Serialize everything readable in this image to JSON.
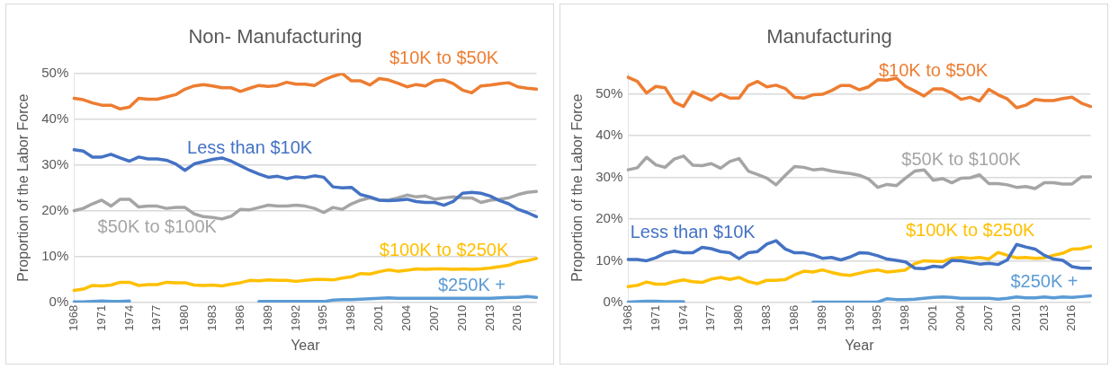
{
  "chart_data": [
    {
      "type": "line",
      "title": "Non- Manufacturing",
      "xlabel": "Year",
      "ylabel": "Proportion of the Labor Force",
      "marker": "none",
      "grid": "y",
      "categories": [
        "1968",
        null,
        null,
        "1971",
        null,
        null,
        "1974",
        null,
        null,
        "1977",
        null,
        null,
        "1980",
        null,
        null,
        "1983",
        null,
        null,
        "1986",
        null,
        null,
        "1989",
        null,
        null,
        "1992",
        null,
        null,
        "1995",
        null,
        null,
        "1998",
        null,
        null,
        "2001",
        null,
        null,
        "2004",
        null,
        null,
        "2007",
        null,
        null,
        "2010",
        null,
        null,
        "2013",
        null,
        null,
        "2016",
        null,
        null
      ],
      "ylim": [
        0,
        50
      ],
      "yticks": [
        {
          "value": 0,
          "label": "0%"
        },
        {
          "value": 10,
          "label": "10%"
        },
        {
          "value": 20,
          "label": "20%"
        },
        {
          "value": 30,
          "label": "30%"
        },
        {
          "value": 40,
          "label": "40%"
        },
        {
          "value": 50,
          "label": "50%"
        }
      ],
      "series": [
        {
          "name": "$10K to $50K",
          "color": "#ed7d31",
          "values": [
            44.5,
            44.2,
            43.5,
            43,
            43,
            42.2,
            42.6,
            44.5,
            44.3,
            44.3,
            44.8,
            45.3,
            46.5,
            47.2,
            47.5,
            47.2,
            46.8,
            46.8,
            46,
            46.7,
            47.3,
            47.1,
            47.3,
            48,
            47.6,
            47.6,
            47.3,
            48.5,
            49.3,
            49.9,
            48.3,
            48.3,
            47.4,
            48.8,
            48.5,
            47.8,
            47.0,
            47.5,
            47.2,
            48.3,
            48.5,
            47.7,
            46.3,
            45.7,
            47.2,
            47.4,
            47.7,
            47.9,
            47.0,
            46.7,
            46.5
          ]
        },
        {
          "name": "Less than $10K",
          "color": "#4472c4",
          "values": [
            33.3,
            33,
            31.7,
            31.7,
            32.3,
            31.5,
            30.8,
            31.7,
            31.3,
            31.3,
            31,
            30.2,
            28.8,
            30.2,
            30.7,
            31.2,
            31.5,
            30.8,
            29.8,
            28.8,
            28,
            27.3,
            27.5,
            27,
            27.4,
            27.2,
            27.6,
            27.3,
            25.2,
            25,
            25.1,
            23.5,
            23,
            22.3,
            22.2,
            22.3,
            22.5,
            22,
            21.8,
            21.8,
            21.2,
            22,
            23.8,
            24,
            23.8,
            23.2,
            22.2,
            21.5,
            20.3,
            19.6,
            18.7
          ]
        },
        {
          "name": "$50K to $100K",
          "color": "#a5a5a5",
          "values": [
            20,
            20.5,
            21.5,
            22.3,
            21,
            22.5,
            22.5,
            20.8,
            21,
            21,
            20.5,
            20.7,
            20.7,
            19.3,
            18.7,
            18.5,
            18.2,
            18.8,
            20.3,
            20.2,
            20.7,
            21.2,
            21,
            21,
            21.2,
            21,
            20.5,
            19.6,
            20.7,
            20.3,
            21.5,
            22.3,
            22.8,
            22.3,
            22.3,
            22.8,
            23.4,
            23,
            23.2,
            22.5,
            22.8,
            23,
            22.8,
            22.8,
            21.8,
            22.3,
            22.5,
            22.8,
            23.5,
            24,
            24.2
          ]
        },
        {
          "name": "$100K to $250K",
          "color": "#ffc000",
          "values": [
            2.6,
            2.9,
            3.7,
            3.6,
            3.8,
            4.4,
            4.4,
            3.7,
            3.9,
            3.9,
            4.4,
            4.3,
            4.3,
            3.8,
            3.7,
            3.8,
            3.6,
            4,
            4.3,
            4.8,
            4.7,
            4.9,
            4.8,
            4.8,
            4.6,
            4.8,
            5,
            5,
            4.9,
            5.3,
            5.6,
            6.3,
            6.2,
            6.7,
            7.1,
            6.8,
            7,
            7.3,
            7.2,
            7.3,
            7.3,
            7.2,
            7.3,
            7.2,
            7.3,
            7.5,
            7.8,
            8.1,
            8.8,
            9.1,
            9.6
          ]
        },
        {
          "name": "$250K +",
          "color": "#5b9bd5",
          "values": [
            0.1,
            0.1,
            0.2,
            0.3,
            0.2,
            0.2,
            0.3,
            null,
            null,
            null,
            null,
            null,
            null,
            null,
            null,
            null,
            null,
            null,
            null,
            null,
            0.2,
            0.2,
            0.2,
            0.2,
            0.2,
            0.2,
            0.2,
            0.2,
            0.5,
            0.6,
            0.6,
            0.7,
            0.8,
            0.9,
            1.0,
            0.9,
            0.9,
            0.9,
            0.9,
            0.9,
            0.9,
            0.9,
            0.9,
            0.9,
            0.9,
            0.9,
            1.0,
            1.1,
            1.1,
            1.3,
            1.1
          ]
        }
      ]
    },
    {
      "type": "line",
      "title": "Manufacturing",
      "xlabel": "Year",
      "ylabel": "Proportion of the Labor Force",
      "marker": "none",
      "grid": "y",
      "categories": [
        "1968",
        null,
        null,
        "1971",
        null,
        null,
        "1974",
        null,
        null,
        "1977",
        null,
        null,
        "1980",
        null,
        null,
        "1983",
        null,
        null,
        "1986",
        null,
        null,
        "1989",
        null,
        null,
        "1992",
        null,
        null,
        "1995",
        null,
        null,
        "1998",
        null,
        null,
        "2001",
        null,
        null,
        "2004",
        null,
        null,
        "2007",
        null,
        null,
        "2010",
        null,
        null,
        "2013",
        null,
        null,
        "2016",
        null,
        null
      ],
      "ylim": [
        0,
        55
      ],
      "yticks": [
        {
          "value": 0,
          "label": "0%"
        },
        {
          "value": 10,
          "label": "10%"
        },
        {
          "value": 20,
          "label": "20%"
        },
        {
          "value": 30,
          "label": "30%"
        },
        {
          "value": 40,
          "label": "40%"
        },
        {
          "value": 50,
          "label": "50%"
        }
      ],
      "series": [
        {
          "name": "$10K to $50K",
          "color": "#ed7d31",
          "values": [
            54,
            53,
            50.2,
            51.8,
            51.5,
            48,
            47,
            50.5,
            49.5,
            48.5,
            50,
            49,
            49,
            52,
            53,
            51.7,
            52.1,
            51.3,
            49.2,
            49,
            49.8,
            49.9,
            50.8,
            52,
            52,
            51,
            51.7,
            53.4,
            53.3,
            53.8,
            51.8,
            50.7,
            49.5,
            51.2,
            51.2,
            50.2,
            48.7,
            49.2,
            48.3,
            51.1,
            49.8,
            48.8,
            46.7,
            47.3,
            48.7,
            48.4,
            48.4,
            48.9,
            49.2,
            47.8,
            47
          ]
        },
        {
          "name": "$50K to $100K",
          "color": "#a5a5a5",
          "values": [
            31.8,
            32.3,
            34.8,
            33,
            32.4,
            34.4,
            35.1,
            32.9,
            32.8,
            33.3,
            32.2,
            33.8,
            34.5,
            31.5,
            30.7,
            29.8,
            28.2,
            30.5,
            32.6,
            32.4,
            31.8,
            32,
            31.5,
            31.2,
            30.9,
            30.5,
            29.6,
            27.6,
            28.3,
            28,
            29.8,
            31.5,
            31.8,
            29.3,
            29.7,
            28.7,
            29.8,
            29.9,
            30.6,
            28.5,
            28.5,
            28.2,
            27.6,
            27.8,
            27.3,
            28.7,
            28.7,
            28.4,
            28.4,
            30.1,
            30.1
          ]
        },
        {
          "name": "Less than $10K",
          "color": "#4472c4",
          "values": [
            10.3,
            10.3,
            10,
            10.7,
            11.8,
            12.3,
            11.9,
            11.9,
            13.2,
            12.9,
            12.2,
            11.9,
            10.5,
            11.9,
            12.2,
            14,
            14.8,
            12.8,
            11.9,
            11.9,
            11.4,
            10.6,
            10.8,
            10.2,
            10.9,
            11.9,
            11.8,
            11.2,
            10.4,
            10.1,
            9.7,
            8.2,
            8.1,
            8.7,
            8.5,
            10.1,
            10,
            9.6,
            9.2,
            9.4,
            9.1,
            10.2,
            13.9,
            13.3,
            12.8,
            11.3,
            10.4,
            10.1,
            8.6,
            8.2,
            8.2
          ]
        },
        {
          "name": "$100K to $250K",
          "color": "#ffc000",
          "values": [
            3.8,
            4.1,
            4.9,
            4.4,
            4.4,
            5,
            5.4,
            5,
            4.8,
            5.6,
            6,
            5.5,
            6,
            5,
            4.5,
            5.3,
            5.3,
            5.5,
            6.6,
            7.5,
            7.3,
            7.8,
            7.2,
            6.7,
            6.5,
            7,
            7.5,
            7.8,
            7.3,
            7.5,
            7.8,
            9.3,
            10,
            9.9,
            9.8,
            10.6,
            10.8,
            10.6,
            10.8,
            10.4,
            12,
            11.3,
            10.7,
            10.8,
            10.6,
            10.7,
            11.3,
            11.8,
            12.8,
            12.9,
            13.4
          ]
        },
        {
          "name": "$250K +",
          "color": "#5b9bd5",
          "values": [
            0.1,
            0.2,
            0.3,
            0.3,
            0.2,
            0.2,
            0.2,
            null,
            null,
            null,
            null,
            null,
            null,
            null,
            null,
            null,
            null,
            null,
            null,
            null,
            0.1,
            0.1,
            0.1,
            0.1,
            0.1,
            0.1,
            0.1,
            0.1,
            0.9,
            0.7,
            0.7,
            0.8,
            1.0,
            1.2,
            1.3,
            1.2,
            1.0,
            1.0,
            1.0,
            1.0,
            0.8,
            1.0,
            1.3,
            1.1,
            1.1,
            1.3,
            1.1,
            1.3,
            1.2,
            1.4,
            1.6
          ]
        }
      ]
    }
  ]
}
